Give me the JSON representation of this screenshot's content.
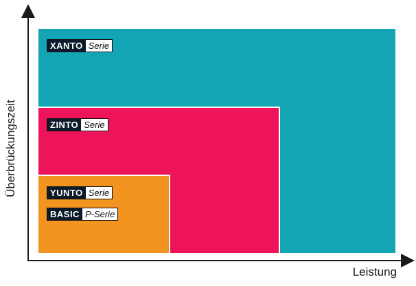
{
  "axes": {
    "y_label": "Überbrückungszeit",
    "x_label": "Leistung"
  },
  "regions": [
    {
      "brand": "XANTO",
      "suffix": "Serie",
      "color": "#14a5b5"
    },
    {
      "brand": "ZINTO",
      "suffix": "Serie",
      "color": "#ee1459"
    },
    {
      "brand": "YUNTO",
      "suffix": "Serie",
      "color": "#f39420"
    }
  ],
  "extra_tag": {
    "brand": "BASIC",
    "suffix": "P-Serie"
  }
}
